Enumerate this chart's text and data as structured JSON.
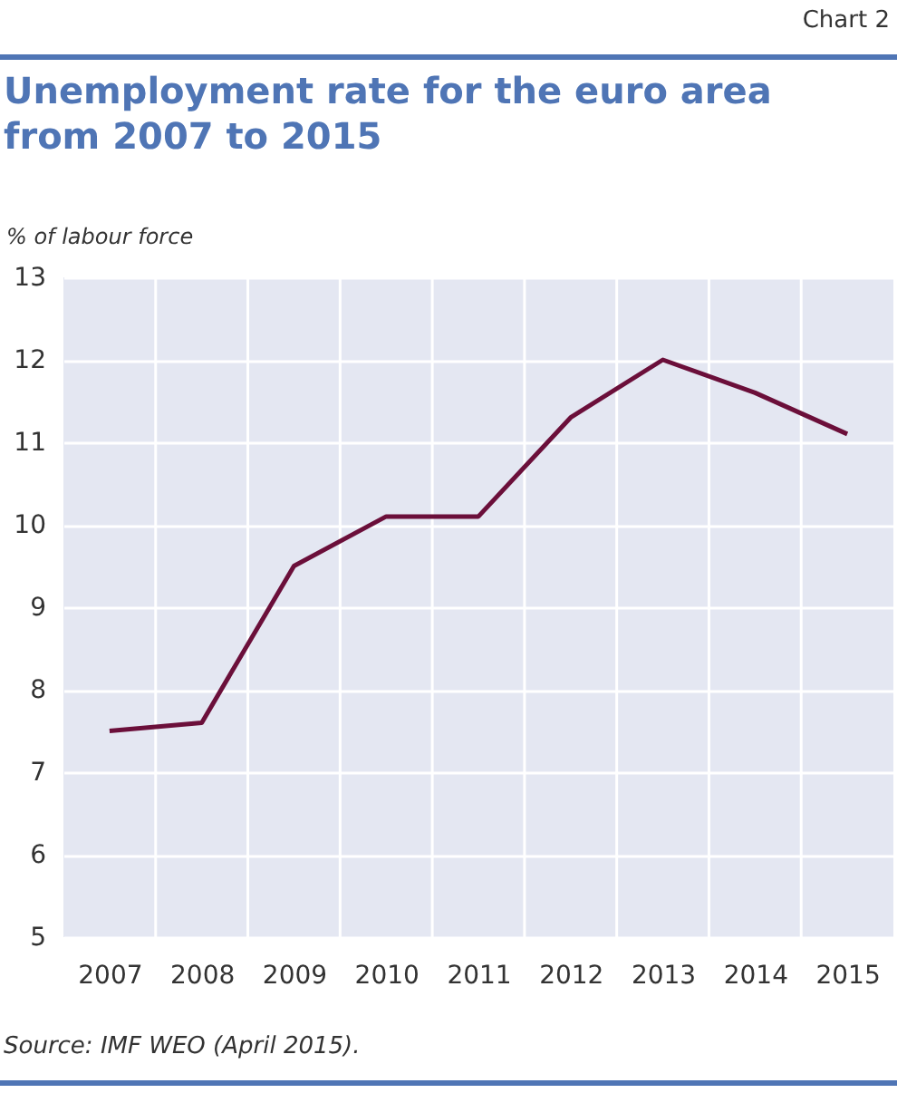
{
  "chart_data": {
    "type": "line",
    "title": "Unemployment rate for the euro area from 2007 to 2015",
    "ylabel": "% of labour force",
    "categories": [
      "2007",
      "2008",
      "2009",
      "2010",
      "2011",
      "2012",
      "2013",
      "2014",
      "2015"
    ],
    "series": [
      {
        "color": "#6b0f3a",
        "values": [
          7.5,
          7.6,
          9.5,
          10.1,
          10.1,
          11.3,
          12.0,
          11.6,
          11.1
        ]
      }
    ],
    "ylim": [
      5,
      13
    ],
    "yticks": [
      5,
      6,
      7,
      8,
      9,
      10,
      11,
      12,
      13
    ],
    "grid": true,
    "marker": "none",
    "line_style": "solid",
    "annotations": [
      "Chart 2",
      "Source: IMF WEO (April 2015)."
    ]
  }
}
